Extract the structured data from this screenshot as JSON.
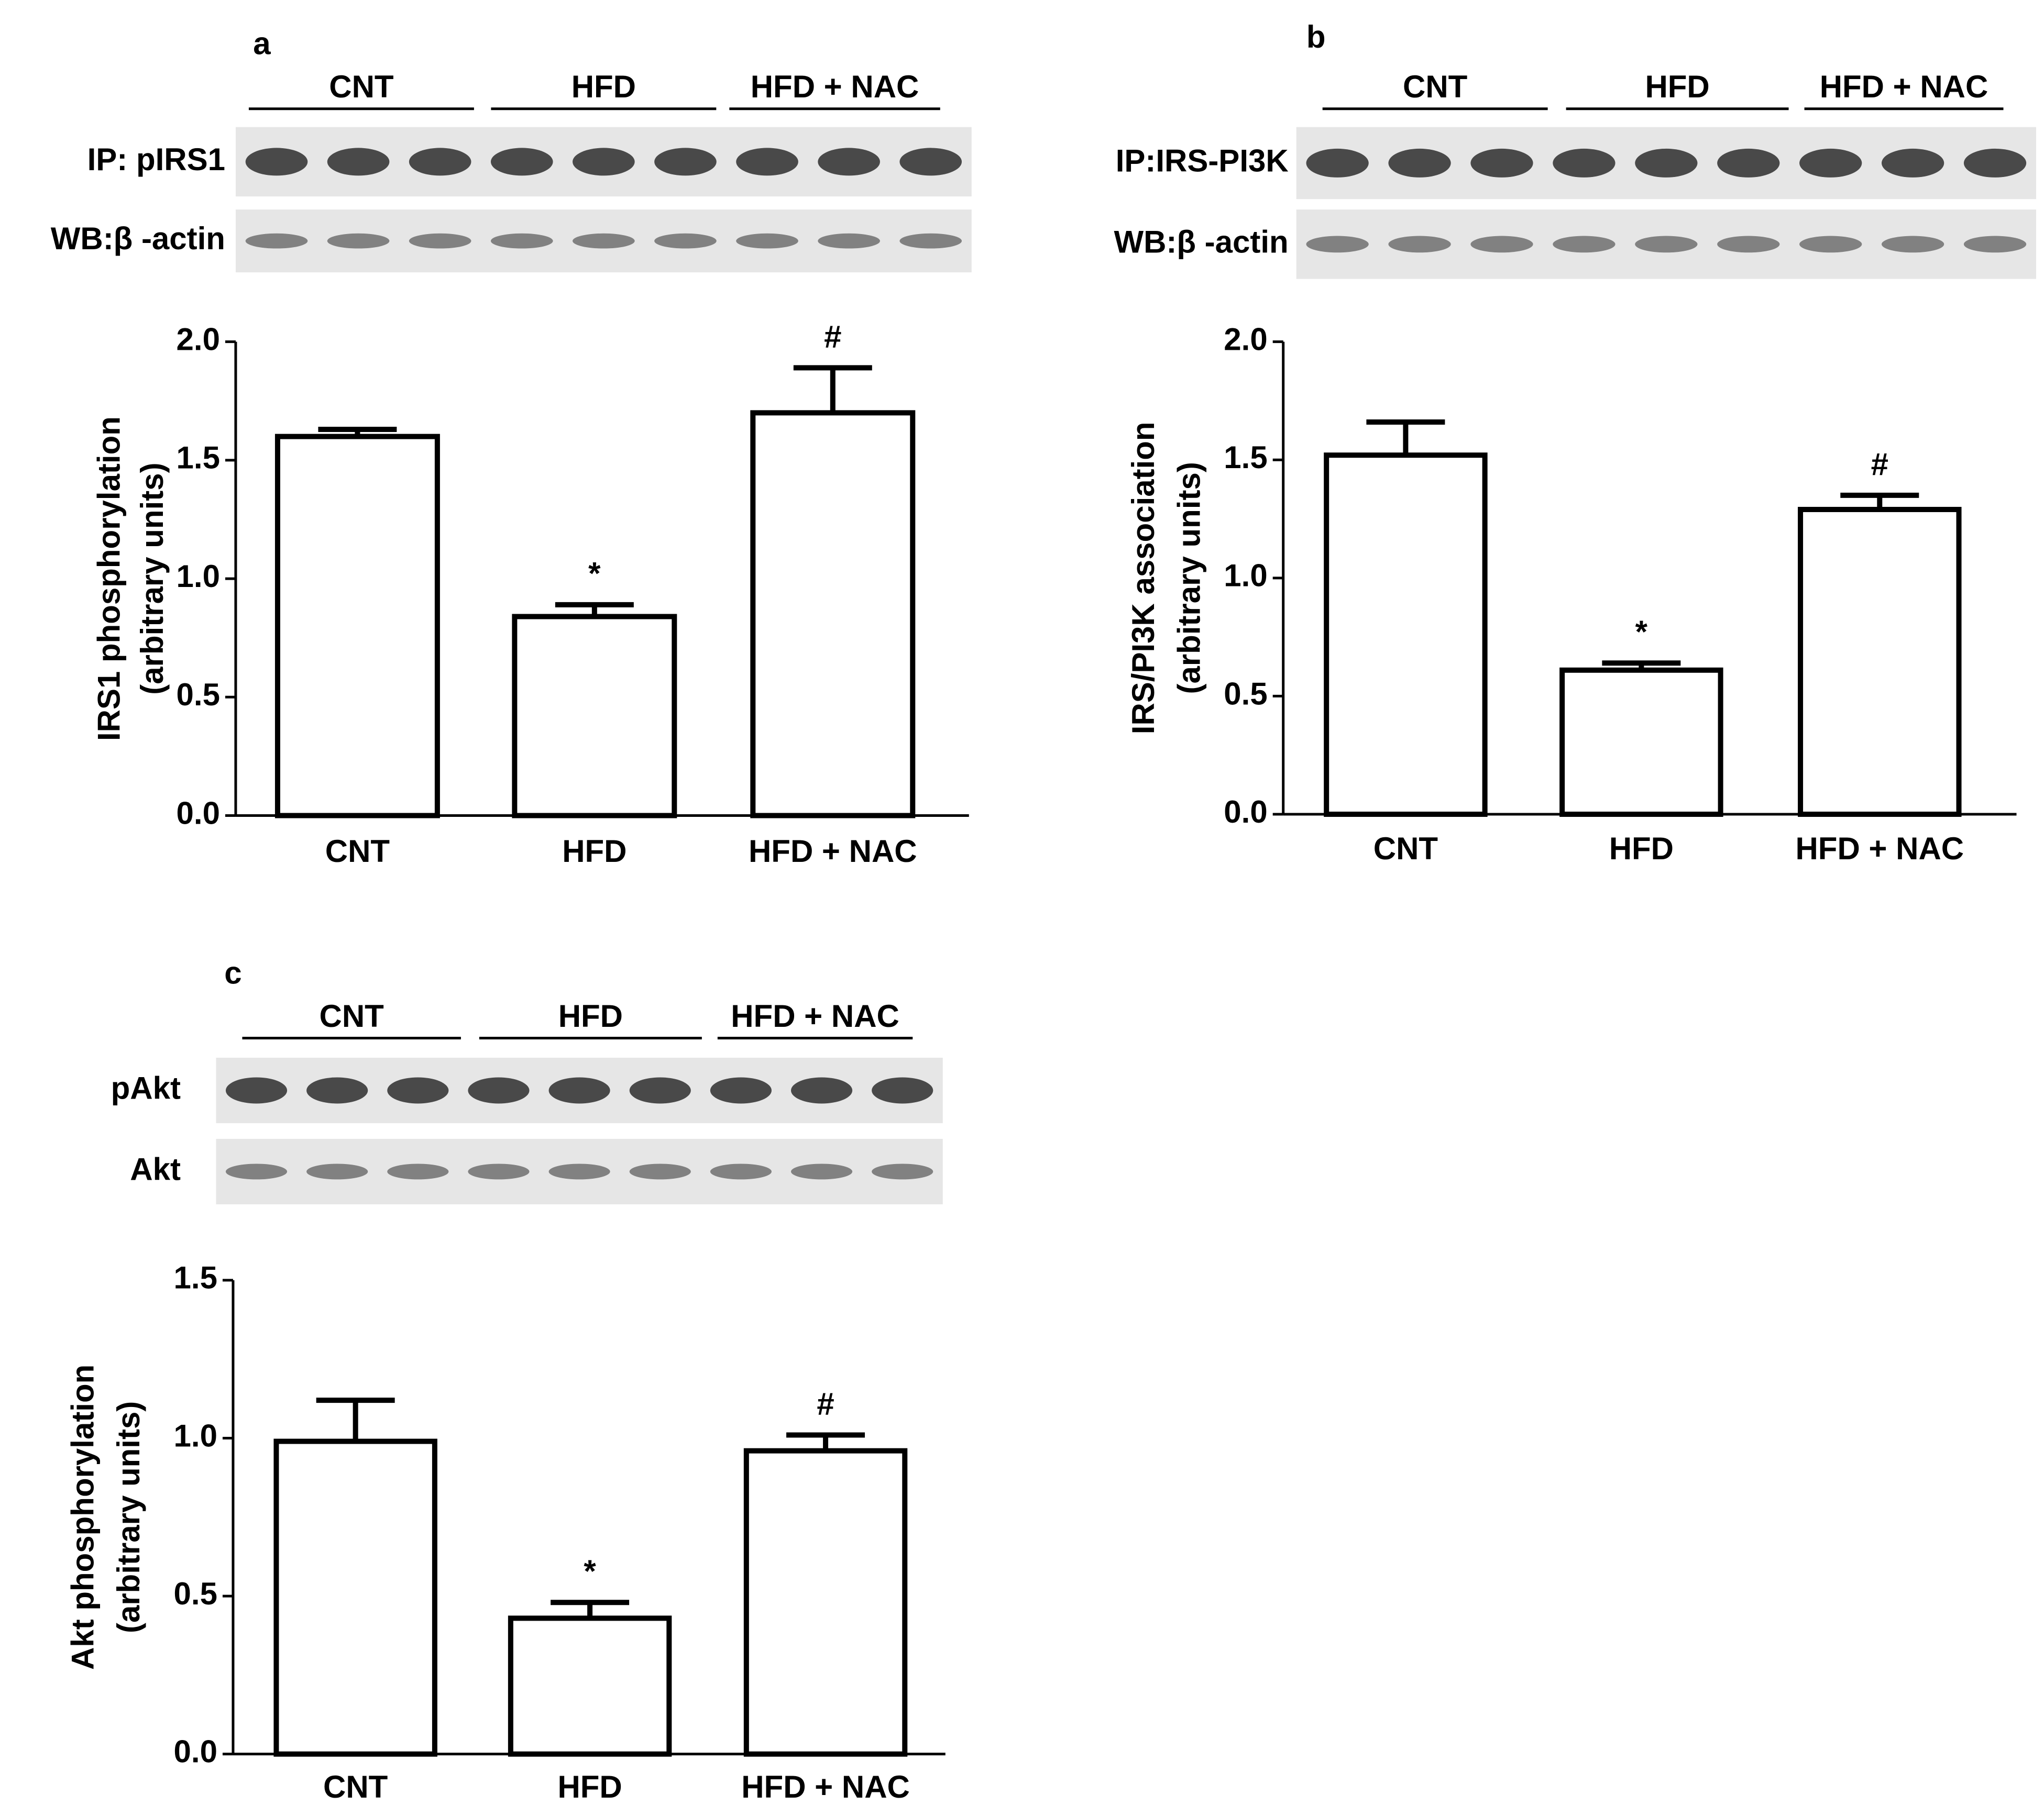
{
  "chart_data": [
    {
      "type": "bar",
      "panel": "a",
      "blot_groups": [
        "CNT",
        "HFD",
        "HFD + NAC"
      ],
      "blot_labels": [
        "IP: pIRS1",
        "WB:β -actin"
      ],
      "ylabel": [
        "IRS1 phosphorylation",
        "(arbitrary units)"
      ],
      "categories": [
        "CNT",
        "HFD",
        "HFD + NAC"
      ],
      "values": [
        1.6,
        0.84,
        1.7
      ],
      "errors": [
        0.03,
        0.05,
        0.19
      ],
      "annotations": [
        {
          "category": 1,
          "text": "*"
        },
        {
          "category": 2,
          "text": "#"
        }
      ],
      "color": "#ffffff",
      "edge_color": "#000000",
      "ylim": [
        0,
        2.0
      ],
      "yticks": [
        {
          "value": 0,
          "label": "0.0"
        },
        {
          "value": 0.5,
          "label": "0.5"
        },
        {
          "value": 1,
          "label": "1.0"
        },
        {
          "value": 1.5,
          "label": "1.5"
        },
        {
          "value": 2,
          "label": "2.0"
        }
      ]
    },
    {
      "type": "bar",
      "panel": "b",
      "blot_groups": [
        "CNT",
        "HFD",
        "HFD + NAC"
      ],
      "blot_labels": [
        "IP:IRS-PI3K",
        "WB:β -actin"
      ],
      "ylabel": [
        "IRS/PI3K association",
        "(arbitrary units)"
      ],
      "categories": [
        "CNT",
        "HFD",
        "HFD + NAC"
      ],
      "values": [
        1.52,
        0.61,
        1.29
      ],
      "errors": [
        0.14,
        0.03,
        0.06
      ],
      "annotations": [
        {
          "category": 1,
          "text": "*"
        },
        {
          "category": 2,
          "text": "#"
        }
      ],
      "color": "#ffffff",
      "edge_color": "#000000",
      "ylim": [
        0,
        2.0
      ],
      "yticks": [
        {
          "value": 0,
          "label": "0.0"
        },
        {
          "value": 0.5,
          "label": "0.5"
        },
        {
          "value": 1,
          "label": "1.0"
        },
        {
          "value": 1.5,
          "label": "1.5"
        },
        {
          "value": 2,
          "label": "2.0"
        }
      ]
    },
    {
      "type": "bar",
      "panel": "c",
      "blot_groups": [
        "CNT",
        "HFD",
        "HFD + NAC"
      ],
      "blot_labels": [
        "pAkt",
        "Akt"
      ],
      "ylabel": [
        "Akt phosphorylation",
        "(arbitrary units)"
      ],
      "categories": [
        "CNT",
        "HFD",
        "HFD + NAC"
      ],
      "values": [
        0.99,
        0.43,
        0.96
      ],
      "errors": [
        0.13,
        0.05,
        0.05
      ],
      "annotations": [
        {
          "category": 1,
          "text": "*"
        },
        {
          "category": 2,
          "text": "#"
        }
      ],
      "color": "#ffffff",
      "edge_color": "#000000",
      "ylim": [
        0,
        1.5
      ],
      "yticks": [
        {
          "value": 0,
          "label": "0.0"
        },
        {
          "value": 0.5,
          "label": "0.5"
        },
        {
          "value": 1,
          "label": "1.0"
        },
        {
          "value": 1.5,
          "label": "1.5"
        }
      ]
    }
  ]
}
